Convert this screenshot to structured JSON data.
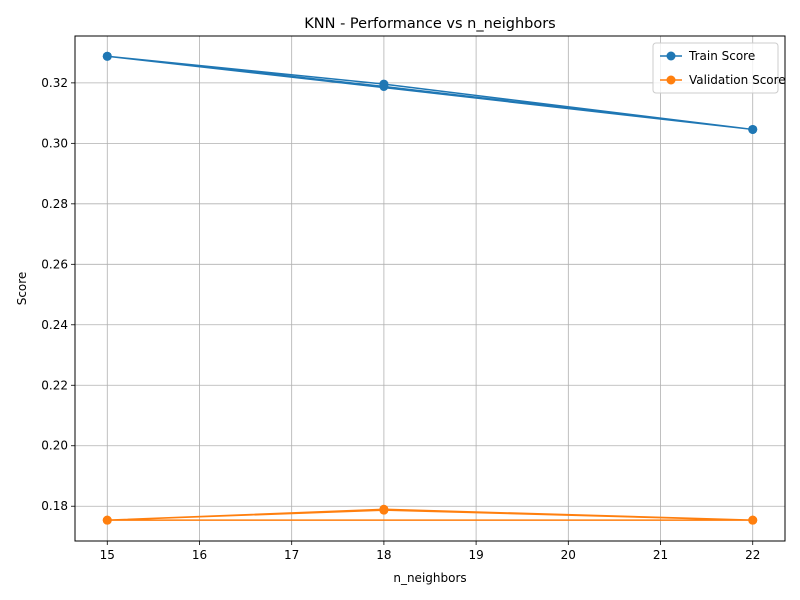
{
  "chart_data": {
    "type": "line",
    "title": "KNN - Performance vs n_neighbors",
    "xlabel": "n_neighbors",
    "ylabel": "Score",
    "xlim": [
      14.65,
      22.35
    ],
    "ylim": [
      0.1685,
      0.3355
    ],
    "xticks": [
      15,
      16,
      17,
      18,
      19,
      20,
      21,
      22
    ],
    "yticks": [
      0.18,
      0.2,
      0.22,
      0.24,
      0.26,
      0.28,
      0.3,
      0.32
    ],
    "ytick_labels": [
      "0.18",
      "0.20",
      "0.22",
      "0.24",
      "0.26",
      "0.28",
      "0.30",
      "0.32"
    ],
    "grid": true,
    "legend_position": "top-right",
    "series": [
      {
        "name": "Train Score",
        "color": "#1f77b4",
        "x": [
          15,
          18,
          22,
          15,
          18,
          22
        ],
        "y": [
          0.3288,
          0.3196,
          0.3046,
          0.3288,
          0.3188,
          0.3046
        ]
      },
      {
        "name": "Validation Score",
        "color": "#ff7f0e",
        "x": [
          15,
          18,
          22,
          15,
          18,
          22
        ],
        "y": [
          0.1754,
          0.179,
          0.1754,
          0.1754,
          0.1787,
          0.1754
        ]
      }
    ]
  }
}
